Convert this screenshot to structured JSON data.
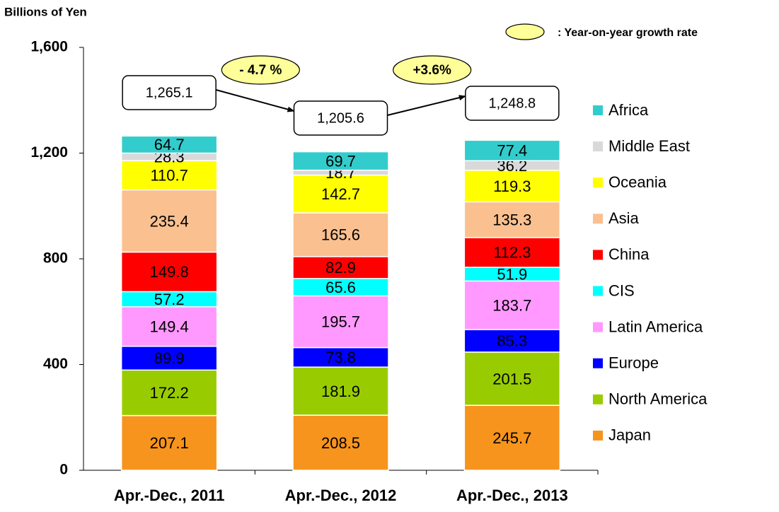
{
  "chart_data": {
    "type": "stacked_bar",
    "y_axis_label": "Billions of Yen",
    "growth_legend": ": Year-on-year growth rate",
    "categories": [
      "Apr.-Dec., 2011",
      "Apr.-Dec., 2012",
      "Apr.-Dec., 2013"
    ],
    "series": [
      {
        "name": "Japan",
        "color": "#f7941d",
        "values": [
          207.1,
          208.5,
          245.7
        ]
      },
      {
        "name": "North America",
        "color": "#99cc00",
        "values": [
          172.2,
          181.9,
          201.5
        ]
      },
      {
        "name": "Europe",
        "color": "#0000ff",
        "values": [
          89.9,
          73.8,
          85.3
        ]
      },
      {
        "name": "Latin America",
        "color": "#ff99ff",
        "values": [
          149.4,
          195.7,
          183.7
        ]
      },
      {
        "name": "CIS",
        "color": "#00ffff",
        "values": [
          57.2,
          65.6,
          51.9
        ]
      },
      {
        "name": "China",
        "color": "#ff0000",
        "values": [
          149.8,
          82.9,
          112.3
        ]
      },
      {
        "name": "Asia",
        "color": "#fac090",
        "values": [
          235.4,
          165.6,
          135.3
        ]
      },
      {
        "name": "Oceania",
        "color": "#ffff00",
        "values": [
          110.7,
          142.7,
          119.3
        ]
      },
      {
        "name": "Middle East",
        "color": "#d9d9d9",
        "values": [
          28.3,
          18.7,
          36.2
        ]
      },
      {
        "name": "Africa",
        "color": "#33cccc",
        "values": [
          64.7,
          69.7,
          77.4
        ]
      }
    ],
    "totals": {
      "values": [
        1265.1,
        1205.6,
        1248.8
      ],
      "value_labels": [
        "1,265.1",
        "1,205.6",
        "1,248.8"
      ]
    },
    "growth": {
      "color": "#ffff99",
      "values": [
        -4.7,
        3.6
      ],
      "value_labels": [
        "- 4.7 %",
        "+3.6%"
      ]
    },
    "ylim": [
      0,
      1600
    ],
    "yticks": [
      0,
      400,
      800,
      {
        "value": 1200,
        "label": "1,200"
      },
      {
        "value": 1600,
        "label": "1,600"
      }
    ],
    "legend": "right"
  }
}
